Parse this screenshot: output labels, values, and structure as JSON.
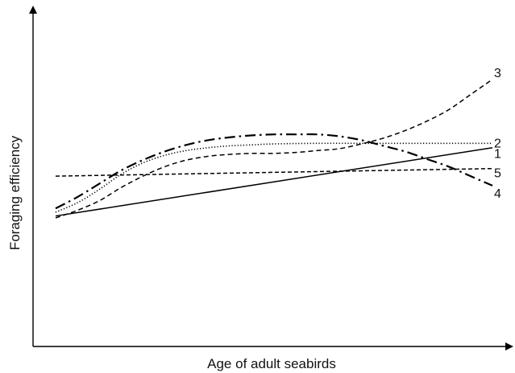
{
  "chart_data": {
    "type": "line",
    "title": "",
    "xlabel": "Age of adult seabirds",
    "ylabel": "Foraging efficiency",
    "xlim": [
      0,
      100
    ],
    "ylim": [
      0,
      100
    ],
    "grid": false,
    "legend": "none",
    "series": [
      {
        "name": "1",
        "line_style": "solid",
        "x": [
          0,
          100
        ],
        "y": [
          37,
          73
        ]
      },
      {
        "name": "2",
        "line_style": "dotted",
        "x": [
          0,
          5,
          10,
          15,
          20,
          25,
          30,
          35,
          40,
          45,
          50,
          60,
          70,
          80,
          90,
          100
        ],
        "y": [
          39,
          44,
          51,
          59,
          65,
          69,
          71.5,
          73,
          74,
          74.5,
          75,
          75.3,
          75.3,
          75.3,
          75.3,
          75.3
        ]
      },
      {
        "name": "3",
        "line_style": "dashed",
        "x": [
          0,
          5,
          10,
          15,
          20,
          25,
          30,
          35,
          40,
          45,
          50,
          55,
          60,
          65,
          70,
          75,
          80,
          85,
          90,
          95,
          100
        ],
        "y": [
          36,
          40,
          45,
          52,
          58,
          63,
          66.5,
          68.5,
          69.5,
          70,
          70,
          70.5,
          71.5,
          72.5,
          75,
          78,
          82,
          87,
          93,
          101,
          109
        ]
      },
      {
        "name": "4",
        "line_style": "dash-dot",
        "x": [
          0,
          5,
          10,
          15,
          20,
          25,
          30,
          35,
          40,
          45,
          50,
          55,
          60,
          65,
          70,
          75,
          80,
          85,
          90,
          95,
          100
        ],
        "y": [
          41,
          47,
          54,
          61,
          66.5,
          71,
          74.5,
          77,
          78.5,
          79.5,
          80,
          80,
          80,
          79,
          77,
          74,
          71,
          67,
          63,
          58,
          53
        ]
      },
      {
        "name": "5",
        "line_style": "short-dash",
        "x": [
          0,
          100
        ],
        "y": [
          58,
          62
        ]
      }
    ]
  }
}
